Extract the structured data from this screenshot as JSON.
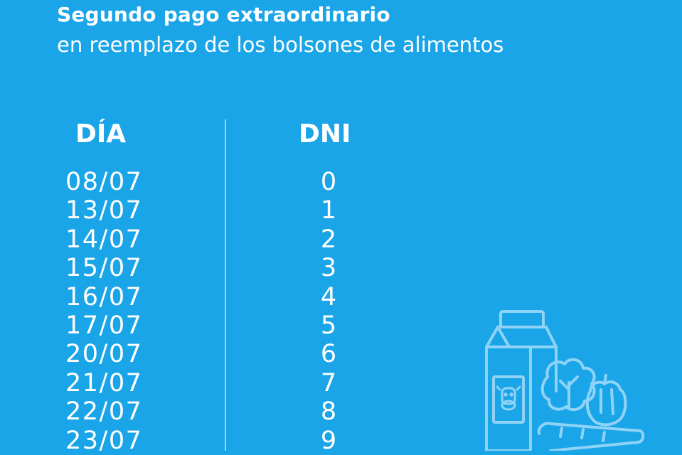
{
  "header": {
    "title": "Segundo pago extraordinario",
    "subtitle": "en reemplazo de los bolsones de alimentos"
  },
  "table": {
    "column_headers": {
      "day": "DÍA",
      "dni": "DNI"
    },
    "rows": [
      {
        "date": "08/07",
        "dni": "0"
      },
      {
        "date": "13/07",
        "dni": "1"
      },
      {
        "date": "14/07",
        "dni": "2"
      },
      {
        "date": "15/07",
        "dni": "3"
      },
      {
        "date": "16/07",
        "dni": "4"
      },
      {
        "date": "17/07",
        "dni": "5"
      },
      {
        "date": "20/07",
        "dni": "6"
      },
      {
        "date": "21/07",
        "dni": "7"
      },
      {
        "date": "22/07",
        "dni": "8"
      },
      {
        "date": "23/07",
        "dni": "9"
      }
    ]
  },
  "illustration": {
    "icon": "groceries-milk-carton-vegetables-icon"
  },
  "colors": {
    "background": "#1aa5e8",
    "text": "#ffffff",
    "illustration_stroke": "#8fd3f7"
  }
}
